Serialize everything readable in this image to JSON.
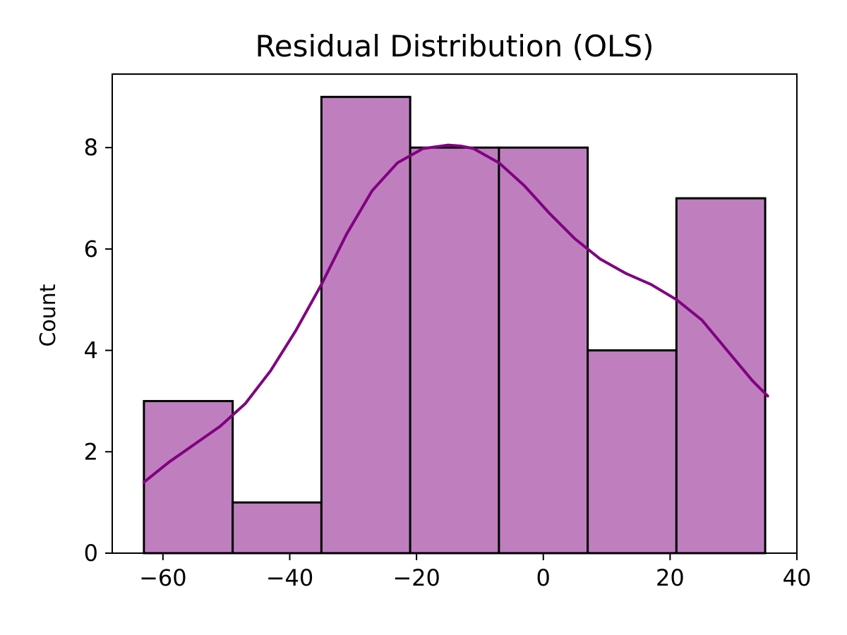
{
  "chart_data": {
    "type": "bar",
    "title": "Residual Distribution (OLS)",
    "xlabel": "",
    "ylabel": "Count",
    "xlim": [
      -68,
      40
    ],
    "ylim": [
      0,
      9.45
    ],
    "xticks": [
      -60,
      -40,
      -20,
      0,
      20,
      40
    ],
    "xtick_labels": [
      "−60",
      "−40",
      "−20",
      "0",
      "20",
      "40"
    ],
    "yticks": [
      0,
      2,
      4,
      6,
      8
    ],
    "ytick_labels": [
      "0",
      "2",
      "4",
      "6",
      "8"
    ],
    "bins": [
      {
        "x0": -63,
        "x1": -49,
        "count": 3
      },
      {
        "x0": -49,
        "x1": -35,
        "count": 1
      },
      {
        "x0": -35,
        "x1": -21,
        "count": 9
      },
      {
        "x0": -21,
        "x1": -7,
        "count": 8
      },
      {
        "x0": -7,
        "x1": 7,
        "count": 8
      },
      {
        "x0": 7,
        "x1": 21,
        "count": 4
      },
      {
        "x0": 21,
        "x1": 35,
        "count": 7
      }
    ],
    "kde": {
      "x": [
        -63,
        -59,
        -55,
        -51,
        -47,
        -43,
        -39,
        -35,
        -31,
        -27,
        -23,
        -19,
        -15,
        -13,
        -11,
        -7,
        -3,
        1,
        5,
        9,
        13,
        17,
        21,
        25,
        29,
        33,
        35.4
      ],
      "y": [
        1.4,
        1.8,
        2.15,
        2.5,
        2.95,
        3.6,
        4.4,
        5.3,
        6.3,
        7.15,
        7.7,
        7.98,
        8.05,
        8.03,
        7.98,
        7.7,
        7.25,
        6.7,
        6.2,
        5.8,
        5.52,
        5.3,
        5.0,
        4.6,
        4.0,
        3.4,
        3.1
      ]
    },
    "grid": false,
    "legend": "none",
    "colors": {
      "bar_fill": "#bf7fbf",
      "bar_edge": "#000000",
      "kde_line": "#800080",
      "axis": "#000000",
      "background": "#ffffff"
    }
  }
}
